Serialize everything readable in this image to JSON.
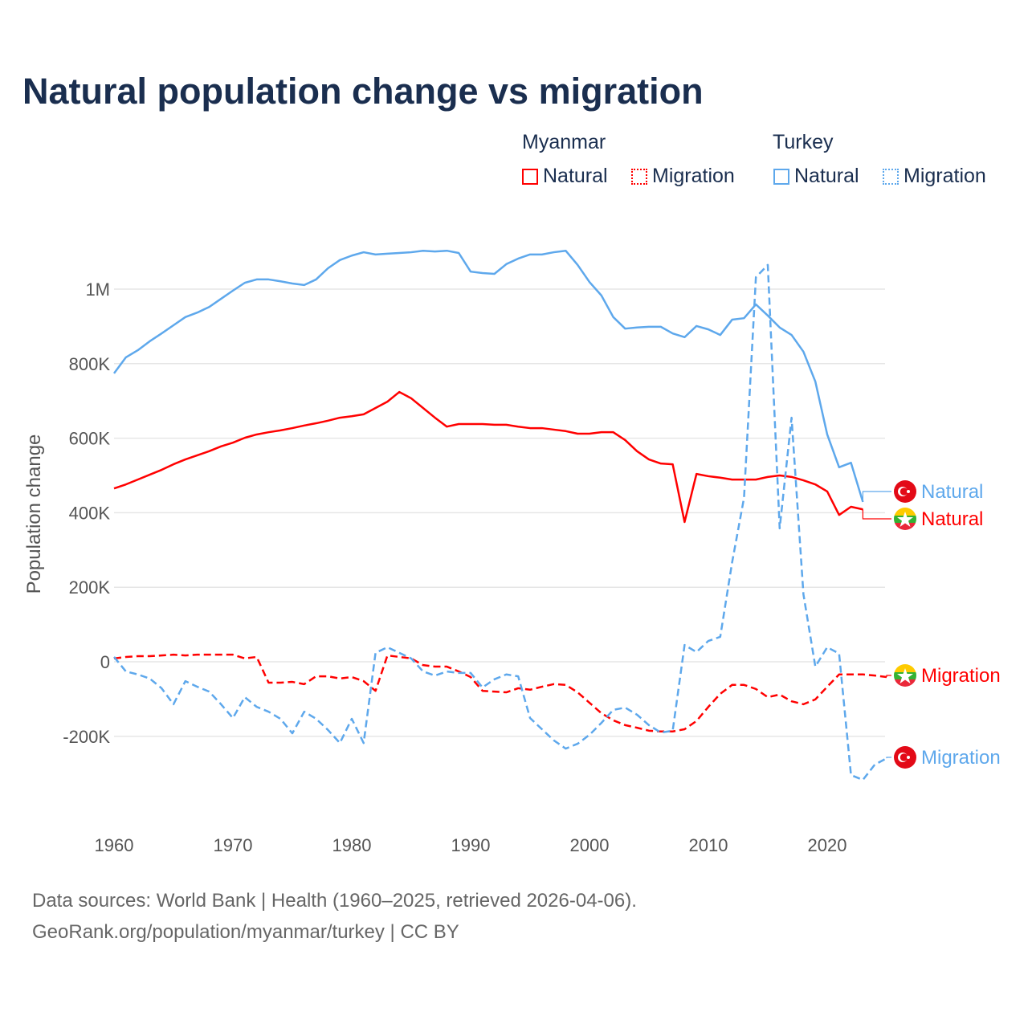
{
  "title": "Natural population change vs migration",
  "legend": {
    "groups": [
      {
        "name": "Myanmar",
        "items": [
          "Natural",
          "Migration"
        ],
        "color": "#ff0000"
      },
      {
        "name": "Turkey",
        "items": [
          "Natural",
          "Migration"
        ],
        "color": "#5ea8ec"
      }
    ]
  },
  "footer": {
    "line1": "Data sources: World Bank | Health (1960–2025, retrieved 2026-04-06).",
    "line2": "GeoRank.org/population/myanmar/turkey | CC BY"
  },
  "chart_data": {
    "type": "line",
    "title": "Natural population change vs migration",
    "ylabel": "Population change",
    "xlabel": "",
    "xlim": [
      1960,
      2025
    ],
    "ylim": [
      -350000,
      1150000
    ],
    "x_ticks": [
      1960,
      1970,
      1980,
      1990,
      2000,
      2010,
      2020
    ],
    "x_tick_labels": [
      "1960",
      "1970",
      "1980",
      "1990",
      "2000",
      "2010",
      "2020"
    ],
    "y_ticks": [
      -200000,
      0,
      200000,
      400000,
      600000,
      800000,
      1000000
    ],
    "y_tick_labels": [
      "-200K",
      "0",
      "200K",
      "400K",
      "600K",
      "800K",
      "1M"
    ],
    "grid": true,
    "x_start": 1960,
    "unit": "thousands",
    "series": [
      {
        "name": "Turkey Natural",
        "end_label": "Natural",
        "country": "Turkey",
        "kind": "natural",
        "color": "#5ea8ec",
        "dashed": false,
        "values": [
          774,
          817,
          836,
          860,
          881,
          903,
          925,
          937,
          952,
          974,
          996,
          1017,
          1026,
          1026,
          1021,
          1015,
          1011,
          1026,
          1056,
          1078,
          1090,
          1099,
          1093,
          1095,
          1097,
          1099,
          1103,
          1101,
          1103,
          1097,
          1047,
          1043,
          1041,
          1067,
          1082,
          1093,
          1093,
          1099,
          1103,
          1065,
          1019,
          983,
          925,
          894,
          897,
          899,
          899,
          881,
          871,
          901,
          892,
          877,
          918,
          922,
          959,
          929,
          897,
          877,
          832,
          752,
          610,
          522,
          534,
          429
        ]
      },
      {
        "name": "Myanmar Natural",
        "end_label": "Natural",
        "country": "Myanmar",
        "kind": "natural",
        "color": "#ff0000",
        "dashed": false,
        "values": [
          465,
          476,
          489,
          502,
          515,
          530,
          543,
          554,
          565,
          578,
          588,
          601,
          610,
          616,
          621,
          627,
          634,
          640,
          647,
          655,
          659,
          664,
          681,
          698,
          724,
          707,
          681,
          655,
          631,
          638,
          638,
          638,
          636,
          636,
          631,
          627,
          627,
          623,
          619,
          612,
          612,
          616,
          616,
          595,
          565,
          543,
          532,
          530,
          375,
          504,
          498,
          494,
          489,
          489,
          489,
          496,
          500,
          496,
          487,
          476,
          457,
          394,
          416,
          409
        ]
      },
      {
        "name": "Myanmar Migration",
        "end_label": "Migration",
        "country": "Myanmar",
        "kind": "migration",
        "color": "#ff0000",
        "dashed": true,
        "values": [
          9,
          13,
          15,
          15,
          17,
          19,
          17,
          19,
          19,
          19,
          19,
          9,
          13,
          -56,
          -56,
          -54,
          -60,
          -39,
          -39,
          -45,
          -41,
          -52,
          -78,
          17,
          13,
          9,
          -9,
          -13,
          -13,
          -26,
          -41,
          -78,
          -80,
          -82,
          -71,
          -75,
          -67,
          -60,
          -62,
          -82,
          -110,
          -138,
          -157,
          -170,
          -177,
          -185,
          -187,
          -187,
          -181,
          -159,
          -121,
          -86,
          -62,
          -62,
          -73,
          -95,
          -88,
          -106,
          -114,
          -101,
          -67,
          -34,
          -34,
          -34,
          -37,
          -41
        ]
      },
      {
        "name": "Turkey Migration",
        "end_label": "Migration",
        "country": "Turkey",
        "kind": "migration",
        "color": "#5ea8ec",
        "dashed": true,
        "values": [
          13,
          -26,
          -34,
          -45,
          -71,
          -114,
          -52,
          -67,
          -80,
          -114,
          -151,
          -95,
          -121,
          -134,
          -153,
          -192,
          -134,
          -153,
          -183,
          -218,
          -153,
          -218,
          24,
          39,
          24,
          9,
          -26,
          -37,
          -26,
          -30,
          -30,
          -69,
          -47,
          -34,
          -39,
          -151,
          -181,
          -211,
          -233,
          -220,
          -196,
          -164,
          -129,
          -123,
          -142,
          -170,
          -190,
          -185,
          45,
          26,
          56,
          67,
          267,
          440,
          1032,
          1065,
          358,
          655,
          181,
          -13,
          39,
          22,
          -304,
          -317,
          -276,
          -259
        ]
      }
    ]
  }
}
